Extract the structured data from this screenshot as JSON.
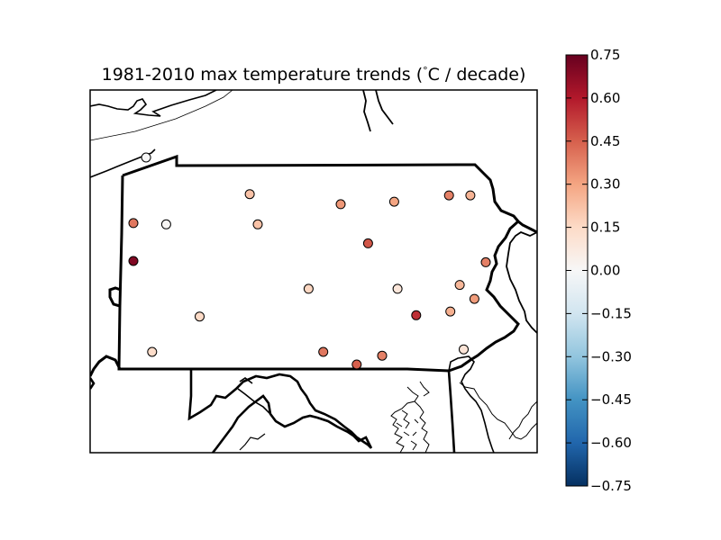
{
  "title": "1981-2010 max temperature trends (°C / decade)",
  "title_main": "1981-2010 max temperature trends (",
  "title_degree": "°",
  "title_unit": "C / decade)",
  "colorbar": {
    "min": -0.75,
    "max": 0.75,
    "colormap": "RdBu_r",
    "ticks": [
      "0.75",
      "0.60",
      "0.45",
      "0.30",
      "0.15",
      "0.00",
      "−0.15",
      "−0.30",
      "−0.45",
      "−0.60",
      "−0.75"
    ],
    "tick_values": [
      0.75,
      0.6,
      0.45,
      0.3,
      0.15,
      0.0,
      -0.15,
      -0.3,
      -0.45,
      -0.6,
      -0.75
    ]
  },
  "colors": {
    "deep_red": "#67001f",
    "red": "#b2182b",
    "mid_red": "#d6604d",
    "light_red": "#f4a582",
    "pale_red": "#fddbc7",
    "white": "#f7f7f7",
    "pale_blue": "#d1e5f0",
    "light_blue": "#92c5de",
    "mid_blue": "#4393c3",
    "blue": "#2166ac",
    "deep_blue": "#053061"
  },
  "stations": [
    {
      "id": "s01",
      "lon": -80.17,
      "lat": 42.09,
      "trend": 0.0
    },
    {
      "id": "s02",
      "lon": -78.62,
      "lat": 41.8,
      "trend": 0.22
    },
    {
      "id": "s03",
      "lon": -76.46,
      "lat": 41.74,
      "trend": 0.3
    },
    {
      "id": "s04",
      "lon": -75.64,
      "lat": 41.79,
      "trend": 0.38
    },
    {
      "id": "s05",
      "lon": -75.32,
      "lat": 41.79,
      "trend": 0.26
    },
    {
      "id": "s06",
      "lon": -77.26,
      "lat": 41.72,
      "trend": 0.33
    },
    {
      "id": "s07",
      "lon": -80.36,
      "lat": 41.57,
      "trend": 0.4
    },
    {
      "id": "s08",
      "lon": -79.87,
      "lat": 41.56,
      "trend": 0.01
    },
    {
      "id": "s09",
      "lon": -78.5,
      "lat": 41.56,
      "trend": 0.22
    },
    {
      "id": "s10",
      "lon": -76.85,
      "lat": 41.41,
      "trend": 0.47
    },
    {
      "id": "s11",
      "lon": -75.09,
      "lat": 41.26,
      "trend": 0.38
    },
    {
      "id": "s12",
      "lon": -80.36,
      "lat": 41.27,
      "trend": 0.7
    },
    {
      "id": "s13",
      "lon": -77.74,
      "lat": 41.05,
      "trend": 0.16
    },
    {
      "id": "s14",
      "lon": -76.41,
      "lat": 41.05,
      "trend": 0.09
    },
    {
      "id": "s15",
      "lon": -75.48,
      "lat": 41.08,
      "trend": 0.25
    },
    {
      "id": "s16",
      "lon": -75.26,
      "lat": 40.97,
      "trend": 0.32
    },
    {
      "id": "s17",
      "lon": -79.37,
      "lat": 40.83,
      "trend": 0.15
    },
    {
      "id": "s18",
      "lon": -76.13,
      "lat": 40.84,
      "trend": 0.55
    },
    {
      "id": "s19",
      "lon": -75.62,
      "lat": 40.87,
      "trend": 0.27
    },
    {
      "id": "s20",
      "lon": -80.08,
      "lat": 40.55,
      "trend": 0.14
    },
    {
      "id": "s21",
      "lon": -77.52,
      "lat": 40.55,
      "trend": 0.4
    },
    {
      "id": "s22",
      "lon": -76.64,
      "lat": 40.52,
      "trend": 0.38
    },
    {
      "id": "s23",
      "lon": -77.02,
      "lat": 40.45,
      "trend": 0.45
    },
    {
      "id": "s24",
      "lon": -75.42,
      "lat": 40.57,
      "trend": 0.1
    }
  ]
}
